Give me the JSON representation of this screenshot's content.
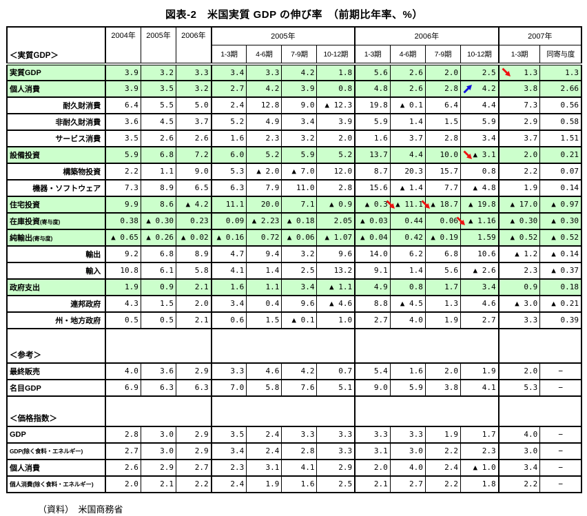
{
  "title": "図表-2　米国実質 GDP の伸び率　（前期比年率、%）",
  "source": "（資料）　米国商務省",
  "colors": {
    "highlight_green": "#ccffcc",
    "arrow_red": "#ee1111",
    "arrow_blue": "#1111dd",
    "border": "#000000"
  },
  "table": {
    "corner_label": "＜実質GDP＞",
    "annual_columns": [
      "2004年",
      "2005年",
      "2006年"
    ],
    "groups": [
      {
        "label": "2005年",
        "cols": [
          "1-3期",
          "4-6期",
          "7-9期",
          "10-12期"
        ]
      },
      {
        "label": "2006年",
        "cols": [
          "1-3期",
          "4-6期",
          "7-9期",
          "10-12期"
        ]
      },
      {
        "label": "2007年",
        "cols": [
          "1-3期",
          "同寄与度"
        ]
      }
    ],
    "rows": [
      {
        "label": "実質GDP",
        "green": true,
        "values": [
          "3.9",
          "3.2",
          "3.3",
          "3.4",
          "3.3",
          "4.2",
          "1.8",
          "5.6",
          "2.6",
          "2.0",
          "2.5",
          "1.3",
          "1.3"
        ],
        "arrows": [
          {
            "col": 11,
            "color": "red",
            "dir": "se"
          }
        ]
      },
      {
        "label": "個人消費",
        "green": true,
        "values": [
          "3.9",
          "3.5",
          "3.2",
          "2.7",
          "4.2",
          "3.9",
          "0.8",
          "4.8",
          "2.6",
          "2.8",
          "4.2",
          "3.8",
          "2.66"
        ],
        "arrows": [
          {
            "col": 10,
            "color": "blue",
            "dir": "ne"
          }
        ]
      },
      {
        "label": "耐久財消費",
        "sub": true,
        "values": [
          "6.4",
          "5.5",
          "5.0",
          "2.4",
          "12.8",
          "9.0",
          "▲ 12.3",
          "19.8",
          "▲ 0.1",
          "6.4",
          "4.4",
          "7.3",
          "0.56"
        ]
      },
      {
        "label": "非耐久財消費",
        "sub": true,
        "values": [
          "3.6",
          "4.5",
          "3.7",
          "5.2",
          "4.9",
          "3.4",
          "3.9",
          "5.9",
          "1.4",
          "1.5",
          "5.9",
          "2.9",
          "0.58"
        ]
      },
      {
        "label": "サービス消費",
        "sub": true,
        "values": [
          "3.5",
          "2.6",
          "2.6",
          "1.6",
          "2.3",
          "3.2",
          "2.0",
          "1.6",
          "3.7",
          "2.8",
          "3.4",
          "3.7",
          "1.51"
        ]
      },
      {
        "label": "設備投資",
        "green": true,
        "values": [
          "5.9",
          "6.8",
          "7.2",
          "6.0",
          "5.2",
          "5.9",
          "5.2",
          "13.7",
          "4.4",
          "10.0",
          "▲ 3.1",
          "2.0",
          "0.21"
        ],
        "arrows": [
          {
            "col": 10,
            "color": "red",
            "dir": "se"
          }
        ]
      },
      {
        "label": "構築物投資",
        "sub": true,
        "values": [
          "2.2",
          "1.1",
          "9.0",
          "5.3",
          "▲ 2.0",
          "▲ 7.0",
          "12.0",
          "8.7",
          "20.3",
          "15.7",
          "0.8",
          "2.2",
          "0.07"
        ]
      },
      {
        "label": "機器・ソフトウェア",
        "sub": true,
        "values": [
          "7.3",
          "8.9",
          "6.5",
          "6.3",
          "7.9",
          "11.0",
          "2.8",
          "15.6",
          "▲ 1.4",
          "7.7",
          "▲ 4.8",
          "1.9",
          "0.14"
        ]
      },
      {
        "label": "住宅投資",
        "green": true,
        "values": [
          "9.9",
          "8.6",
          "▲ 4.2",
          "11.1",
          "20.0",
          "7.1",
          "▲ 0.9",
          "▲ 0.3",
          "▲ 11.1",
          "▲ 18.7",
          "▲ 19.8",
          "▲ 17.0",
          "▲ 0.97"
        ],
        "arrows": [
          {
            "col": 8,
            "color": "red",
            "dir": "se",
            "straddle": true
          },
          {
            "col": 9,
            "color": "red",
            "dir": "se",
            "straddle": true
          }
        ]
      },
      {
        "label": "在庫投資",
        "note": "(寄与度)",
        "green": true,
        "values": [
          "0.38",
          "▲ 0.30",
          "0.23",
          "0.09",
          "▲ 2.23",
          "▲ 0.18",
          "2.05",
          "▲ 0.03",
          "0.44",
          "0.06",
          "▲ 1.16",
          "▲ 0.30",
          "▲ 0.30"
        ],
        "arrows": [
          {
            "col": 10,
            "color": "red",
            "dir": "se",
            "straddle": true
          }
        ]
      },
      {
        "label": "純輸出",
        "note": "(寄与度)",
        "green": true,
        "values": [
          "▲ 0.65",
          "▲ 0.26",
          "▲ 0.02",
          "▲ 0.16",
          "0.72",
          "▲ 0.06",
          "▲ 1.07",
          "▲ 0.04",
          "0.42",
          "▲ 0.19",
          "1.59",
          "▲ 0.52",
          "▲ 0.52"
        ]
      },
      {
        "label": "輸出",
        "sub": true,
        "values": [
          "9.2",
          "6.8",
          "8.9",
          "4.7",
          "9.4",
          "3.2",
          "9.6",
          "14.0",
          "6.2",
          "6.8",
          "10.6",
          "▲ 1.2",
          "▲ 0.14"
        ]
      },
      {
        "label": "輸入",
        "sub": true,
        "values": [
          "10.8",
          "6.1",
          "5.8",
          "4.1",
          "1.4",
          "2.5",
          "13.2",
          "9.1",
          "1.4",
          "5.6",
          "▲ 2.6",
          "2.3",
          "▲ 0.37"
        ]
      },
      {
        "label": "政府支出",
        "green": true,
        "values": [
          "1.9",
          "0.9",
          "2.1",
          "1.6",
          "1.1",
          "3.4",
          "▲ 1.1",
          "4.9",
          "0.8",
          "1.7",
          "3.4",
          "0.9",
          "0.18"
        ]
      },
      {
        "label": "連邦政府",
        "sub": true,
        "values": [
          "4.3",
          "1.5",
          "2.0",
          "3.4",
          "0.4",
          "9.6",
          "▲ 4.6",
          "8.8",
          "▲ 4.5",
          "1.3",
          "4.6",
          "▲ 3.0",
          "▲ 0.21"
        ]
      },
      {
        "label": "州・地方政府",
        "sub": true,
        "values": [
          "0.5",
          "0.5",
          "2.1",
          "0.6",
          "1.5",
          "▲ 0.1",
          "1.0",
          "2.7",
          "4.0",
          "1.9",
          "2.7",
          "3.3",
          "0.39"
        ]
      },
      {
        "section": true,
        "label": "＜参考＞",
        "height": 50
      },
      {
        "label": "最終販売",
        "values": [
          "4.0",
          "3.6",
          "2.9",
          "3.3",
          "4.6",
          "4.2",
          "0.7",
          "5.4",
          "1.6",
          "2.0",
          "1.9",
          "2.0",
          "−"
        ]
      },
      {
        "label": "名目GDP",
        "values": [
          "6.9",
          "6.3",
          "6.3",
          "7.0",
          "5.8",
          "7.6",
          "5.1",
          "9.0",
          "5.9",
          "3.8",
          "4.1",
          "5.3",
          "−"
        ]
      },
      {
        "section": true,
        "label": "＜価格指数＞",
        "height": 44
      },
      {
        "label": "GDP",
        "values": [
          "2.8",
          "3.0",
          "2.9",
          "3.5",
          "2.4",
          "3.3",
          "3.3",
          "3.3",
          "3.3",
          "1.9",
          "1.7",
          "4.0",
          "−"
        ]
      },
      {
        "label": "GDP(除く食料・エネルギー)",
        "small": true,
        "values": [
          "2.7",
          "3.0",
          "2.9",
          "3.4",
          "2.4",
          "2.8",
          "3.3",
          "3.1",
          "3.0",
          "2.2",
          "2.3",
          "3.0",
          "−"
        ]
      },
      {
        "label": "個人消費",
        "values": [
          "2.6",
          "2.9",
          "2.7",
          "2.3",
          "3.1",
          "4.1",
          "2.9",
          "2.0",
          "4.0",
          "2.4",
          "▲ 1.0",
          "3.4",
          "−"
        ]
      },
      {
        "label": "個人消費(除く食料・エネルギー)",
        "small": true,
        "values": [
          "2.0",
          "2.1",
          "2.2",
          "2.4",
          "1.9",
          "1.6",
          "2.5",
          "2.1",
          "2.7",
          "2.2",
          "1.8",
          "2.2",
          "−"
        ]
      }
    ]
  }
}
